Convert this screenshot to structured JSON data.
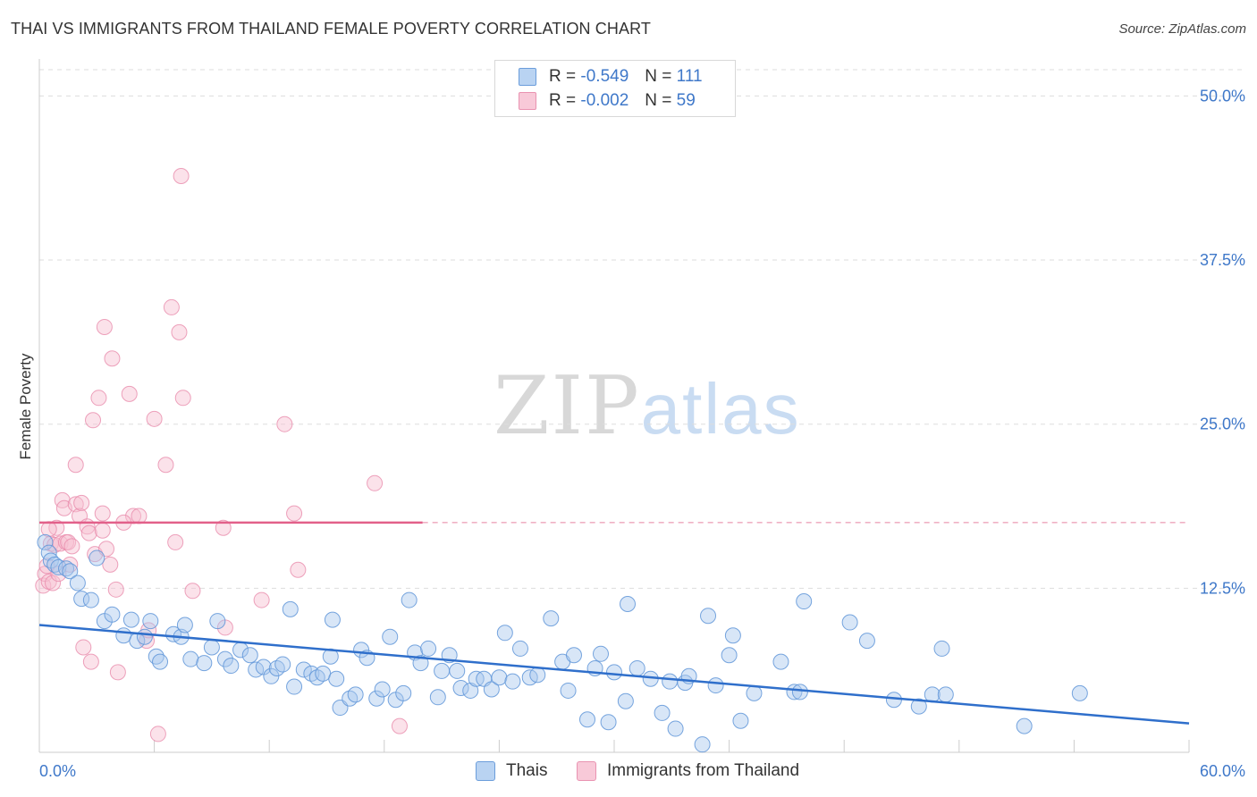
{
  "title": "THAI VS IMMIGRANTS FROM THAILAND FEMALE POVERTY CORRELATION CHART",
  "source": "Source: ZipAtlas.com",
  "watermark": {
    "part1": "ZIP",
    "part2": "atlas"
  },
  "legend": {
    "rows": [
      {
        "r_label": "R =",
        "r_value": "-0.549",
        "n_label": "N =",
        "n_value": "111"
      },
      {
        "r_label": "R =",
        "r_value": "-0.002",
        "n_label": "N =",
        "n_value": "59"
      }
    ]
  },
  "bottom_legend": {
    "thais": "Thais",
    "immigrants": "Immigrants from Thailand"
  },
  "colors": {
    "thais_fill": "#a9c8ee",
    "thais_stroke": "#5f95d8",
    "thais_line": "#2f6fcb",
    "imm_fill": "#f6bfd0",
    "imm_stroke": "#e98bab",
    "imm_line": "#e2608a",
    "grid": "#dddddd",
    "axis_text": "#3f78c9"
  },
  "chart_data": {
    "type": "scatter",
    "ylabel": "Female Poverty",
    "xlim": [
      0,
      60
    ],
    "ylim": [
      0,
      52
    ],
    "x_tick_labels": [
      "0.0%",
      "60.0%"
    ],
    "y_ticks": [
      12.5,
      25.0,
      37.5,
      50.0
    ],
    "y_tick_labels": [
      "12.5%",
      "25.0%",
      "37.5%",
      "50.0%"
    ],
    "grid": true,
    "legend_position": "top-center",
    "series": [
      {
        "name": "Thais",
        "trend": {
          "x": [
            0,
            60
          ],
          "y": [
            9.7,
            2.2
          ]
        },
        "points": [
          [
            0.3,
            16.0
          ],
          [
            0.5,
            15.2
          ],
          [
            0.6,
            14.6
          ],
          [
            0.8,
            14.3
          ],
          [
            1.0,
            14.1
          ],
          [
            1.4,
            14.0
          ],
          [
            1.6,
            13.8
          ],
          [
            2.0,
            12.9
          ],
          [
            2.2,
            11.7
          ],
          [
            2.7,
            11.6
          ],
          [
            3.0,
            14.8
          ],
          [
            3.4,
            10.0
          ],
          [
            3.8,
            10.5
          ],
          [
            4.4,
            8.9
          ],
          [
            4.8,
            10.1
          ],
          [
            5.1,
            8.5
          ],
          [
            5.5,
            8.8
          ],
          [
            5.8,
            10.0
          ],
          [
            6.1,
            7.3
          ],
          [
            6.3,
            6.9
          ],
          [
            7.0,
            9.0
          ],
          [
            7.4,
            8.8
          ],
          [
            7.6,
            9.7
          ],
          [
            7.9,
            7.1
          ],
          [
            8.6,
            6.8
          ],
          [
            9.0,
            8.0
          ],
          [
            9.3,
            10.0
          ],
          [
            9.7,
            7.1
          ],
          [
            10.0,
            6.6
          ],
          [
            10.5,
            7.8
          ],
          [
            11.0,
            7.4
          ],
          [
            11.3,
            6.3
          ],
          [
            11.7,
            6.5
          ],
          [
            12.1,
            5.8
          ],
          [
            12.4,
            6.4
          ],
          [
            12.7,
            6.7
          ],
          [
            13.1,
            10.9
          ],
          [
            13.3,
            5.0
          ],
          [
            13.8,
            6.3
          ],
          [
            14.2,
            6.0
          ],
          [
            14.5,
            5.7
          ],
          [
            14.8,
            6.0
          ],
          [
            15.2,
            7.3
          ],
          [
            15.5,
            5.6
          ],
          [
            15.3,
            10.1
          ],
          [
            15.7,
            3.4
          ],
          [
            16.2,
            4.1
          ],
          [
            16.5,
            4.4
          ],
          [
            16.8,
            7.8
          ],
          [
            17.1,
            7.2
          ],
          [
            17.6,
            4.1
          ],
          [
            17.9,
            4.8
          ],
          [
            18.3,
            8.8
          ],
          [
            18.6,
            4.0
          ],
          [
            19.0,
            4.5
          ],
          [
            19.3,
            11.6
          ],
          [
            19.6,
            7.6
          ],
          [
            19.9,
            6.8
          ],
          [
            20.3,
            7.9
          ],
          [
            20.8,
            4.2
          ],
          [
            21.0,
            6.2
          ],
          [
            21.4,
            7.4
          ],
          [
            21.8,
            6.2
          ],
          [
            22.0,
            4.9
          ],
          [
            22.5,
            4.7
          ],
          [
            22.8,
            5.6
          ],
          [
            23.2,
            5.6
          ],
          [
            23.6,
            4.8
          ],
          [
            24.0,
            5.7
          ],
          [
            24.3,
            9.1
          ],
          [
            24.7,
            5.4
          ],
          [
            25.1,
            7.9
          ],
          [
            25.6,
            5.7
          ],
          [
            26.0,
            5.9
          ],
          [
            26.7,
            10.2
          ],
          [
            27.3,
            6.9
          ],
          [
            27.6,
            4.7
          ],
          [
            27.9,
            7.4
          ],
          [
            28.6,
            2.5
          ],
          [
            29.0,
            6.4
          ],
          [
            29.3,
            7.5
          ],
          [
            29.7,
            2.3
          ],
          [
            30.0,
            6.1
          ],
          [
            30.6,
            3.9
          ],
          [
            30.7,
            11.3
          ],
          [
            31.2,
            6.4
          ],
          [
            31.9,
            5.6
          ],
          [
            32.5,
            3.0
          ],
          [
            32.9,
            5.4
          ],
          [
            33.2,
            1.8
          ],
          [
            33.7,
            5.3
          ],
          [
            33.9,
            5.8
          ],
          [
            34.6,
            0.6
          ],
          [
            34.9,
            10.4
          ],
          [
            35.3,
            5.1
          ],
          [
            36.0,
            7.4
          ],
          [
            36.2,
            8.9
          ],
          [
            36.6,
            2.4
          ],
          [
            37.3,
            4.5
          ],
          [
            38.7,
            6.9
          ],
          [
            39.4,
            4.6
          ],
          [
            39.9,
            11.5
          ],
          [
            39.7,
            4.6
          ],
          [
            42.3,
            9.9
          ],
          [
            43.2,
            8.5
          ],
          [
            44.6,
            4.0
          ],
          [
            45.9,
            3.5
          ],
          [
            46.6,
            4.4
          ],
          [
            47.1,
            7.9
          ],
          [
            47.3,
            4.4
          ],
          [
            51.4,
            2.0
          ],
          [
            54.3,
            4.5
          ]
        ]
      },
      {
        "name": "Immigrants from Thailand",
        "trend": {
          "x": [
            0,
            20
          ],
          "y": [
            17.5,
            17.5
          ]
        },
        "trend_dashed": {
          "x": [
            20,
            60
          ],
          "y": [
            17.5,
            17.5
          ]
        },
        "points": [
          [
            0.2,
            12.7
          ],
          [
            0.3,
            13.6
          ],
          [
            0.4,
            14.2
          ],
          [
            0.5,
            13.0
          ],
          [
            0.6,
            15.9
          ],
          [
            0.7,
            12.9
          ],
          [
            0.8,
            15.8
          ],
          [
            0.9,
            17.1
          ],
          [
            1.0,
            13.6
          ],
          [
            1.1,
            15.9
          ],
          [
            1.2,
            19.2
          ],
          [
            1.3,
            18.6
          ],
          [
            1.4,
            16.0
          ],
          [
            1.5,
            16.0
          ],
          [
            1.7,
            15.7
          ],
          [
            1.9,
            18.9
          ],
          [
            1.9,
            21.9
          ],
          [
            2.1,
            18.0
          ],
          [
            2.2,
            19.0
          ],
          [
            2.3,
            8.0
          ],
          [
            2.5,
            17.2
          ],
          [
            2.6,
            16.7
          ],
          [
            2.7,
            6.9
          ],
          [
            2.9,
            15.1
          ],
          [
            3.1,
            27.0
          ],
          [
            3.3,
            18.2
          ],
          [
            3.4,
            32.4
          ],
          [
            3.5,
            15.5
          ],
          [
            3.7,
            14.3
          ],
          [
            3.8,
            30.0
          ],
          [
            4.0,
            12.4
          ],
          [
            4.1,
            6.1
          ],
          [
            4.7,
            27.3
          ],
          [
            4.9,
            18.0
          ],
          [
            5.2,
            18.0
          ],
          [
            5.6,
            8.5
          ],
          [
            5.7,
            9.3
          ],
          [
            6.0,
            25.4
          ],
          [
            6.2,
            1.4
          ],
          [
            6.6,
            21.9
          ],
          [
            6.9,
            33.9
          ],
          [
            7.1,
            16.0
          ],
          [
            7.3,
            32.0
          ],
          [
            7.5,
            27.0
          ],
          [
            7.4,
            43.9
          ],
          [
            8.0,
            12.3
          ],
          [
            9.6,
            17.1
          ],
          [
            9.7,
            9.5
          ],
          [
            11.6,
            11.6
          ],
          [
            2.8,
            25.3
          ],
          [
            12.8,
            25.0
          ],
          [
            13.3,
            18.2
          ],
          [
            13.5,
            13.9
          ],
          [
            17.5,
            20.5
          ],
          [
            18.8,
            2.0
          ],
          [
            1.6,
            14.3
          ],
          [
            0.5,
            17.0
          ],
          [
            4.4,
            17.5
          ],
          [
            3.3,
            16.9
          ]
        ]
      }
    ]
  }
}
